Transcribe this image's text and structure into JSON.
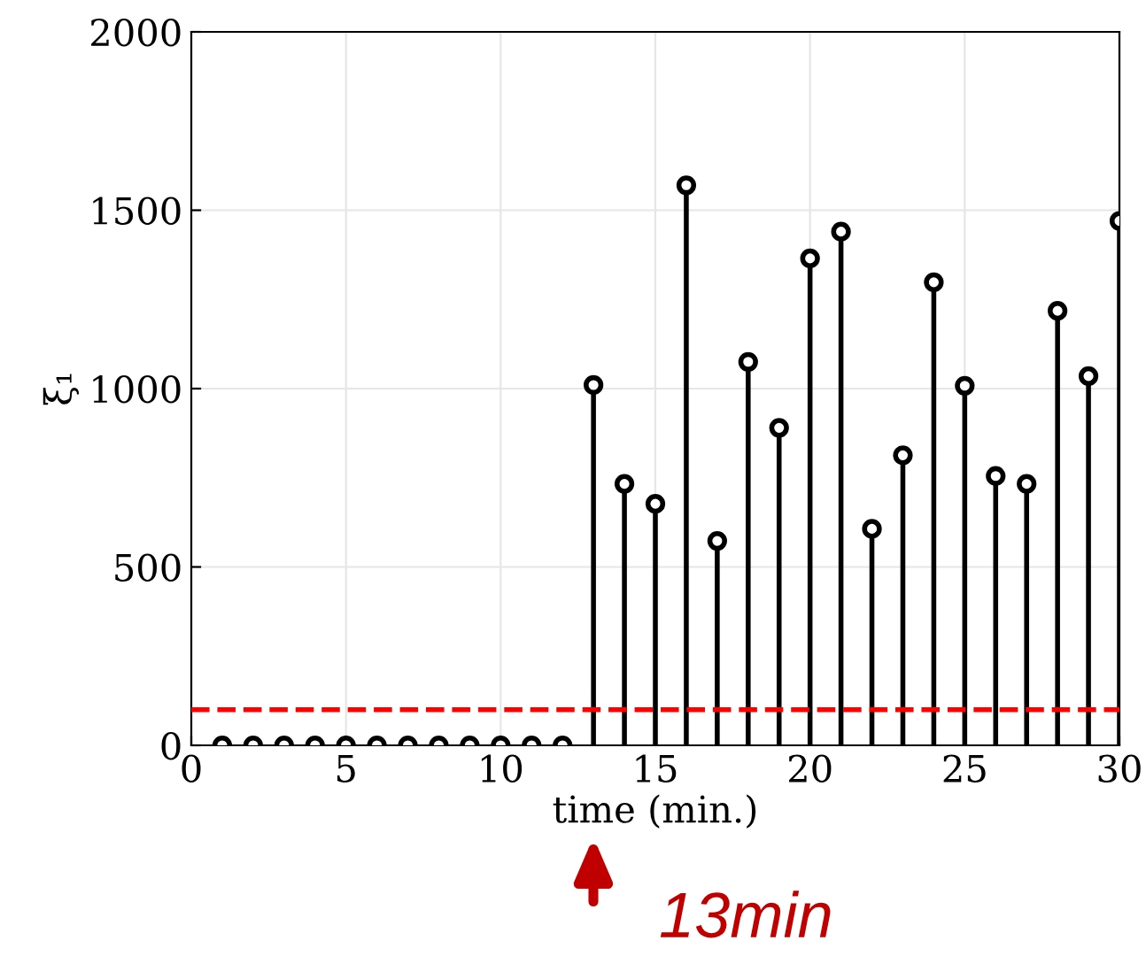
{
  "chart_data": {
    "type": "lollipop",
    "xlabel": "time (min.)",
    "ylabel": "ξ₁",
    "x": [
      1,
      2,
      3,
      4,
      5,
      6,
      7,
      8,
      9,
      10,
      11,
      12,
      13,
      14,
      15,
      16,
      17,
      18,
      19,
      20,
      21,
      22,
      23,
      24,
      25,
      26,
      27,
      28,
      29,
      30
    ],
    "series": [
      {
        "color": "#000000",
        "values": [
          0,
          0,
          0,
          0,
          0,
          0,
          0,
          0,
          0,
          0,
          0,
          0,
          1010,
          733,
          677,
          1570,
          573,
          1075,
          890,
          1365,
          1440,
          607,
          813,
          1298,
          1008,
          755,
          733,
          1218,
          1035,
          1470
        ]
      }
    ],
    "xlim": [
      0,
      30
    ],
    "xticks": [
      0,
      5,
      10,
      15,
      20,
      25,
      30
    ],
    "ylim": [
      0,
      2000
    ],
    "yticks": [
      0,
      500,
      1000,
      1500,
      2000
    ],
    "grid": true,
    "marker": "circle",
    "ref_lines": [
      {
        "axis": "y",
        "value": 100,
        "color": "#ff0000",
        "line_style": "dashed"
      }
    ],
    "annotations": [
      "13min"
    ]
  }
}
